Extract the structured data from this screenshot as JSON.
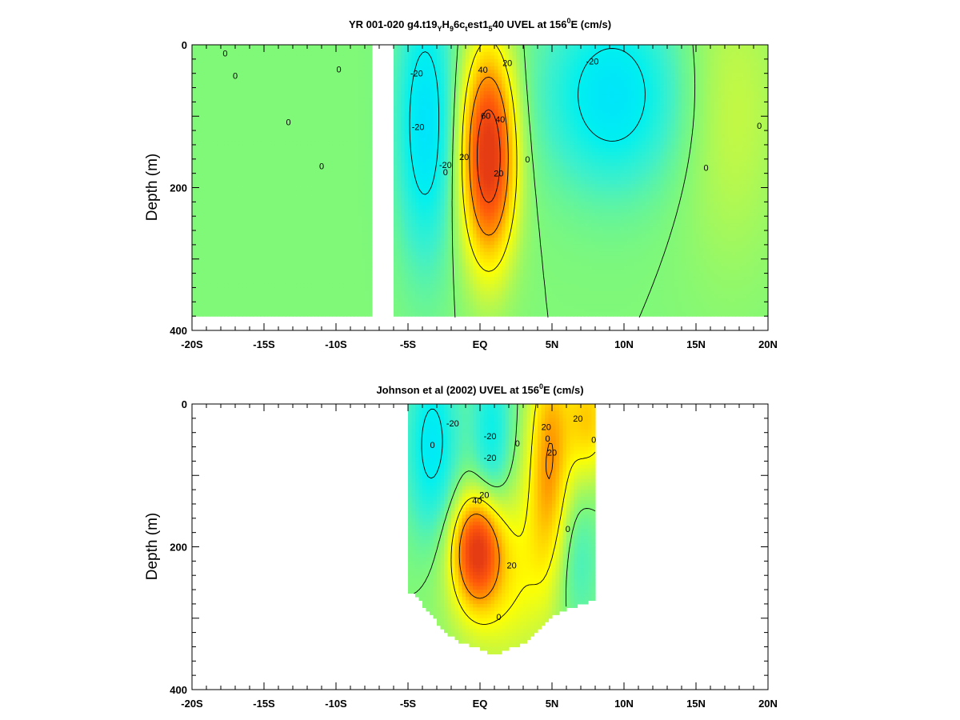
{
  "chart_data": [
    {
      "type": "heatmap",
      "title": {
        "prefix": "YR 001-020 g4.t19",
        "sub1": "Y",
        "mid1": "H",
        "sub2": "9",
        "mid2": "6c",
        "sub3": "t",
        "mid3": "est1",
        "sub4": "5",
        "mid4": "40 UVEL at 156",
        "sup": "0",
        "suffix": "E (cm/s)"
      },
      "ylabel": "Depth (m)",
      "xlim": [
        -20,
        20
      ],
      "ylim": [
        0,
        400
      ],
      "y_inverted": true,
      "x_ticks": [
        {
          "v": -20,
          "label": "-20S"
        },
        {
          "v": -15,
          "label": "-15S"
        },
        {
          "v": -10,
          "label": "-10S"
        },
        {
          "v": -5,
          "label": "-5S"
        },
        {
          "v": 0,
          "label": "EQ"
        },
        {
          "v": 5,
          "label": "5N"
        },
        {
          "v": 10,
          "label": "10N"
        },
        {
          "v": 15,
          "label": "15N"
        },
        {
          "v": 20,
          "label": "20N"
        }
      ],
      "y_ticks": [
        {
          "v": 0,
          "label": "0"
        },
        {
          "v": 200,
          "label": "200"
        },
        {
          "v": 400,
          "label": "400"
        }
      ],
      "data_extent": {
        "x": [
          -20,
          20
        ],
        "y": [
          0,
          382
        ]
      },
      "missing_x_band": [
        -7.5,
        -6.1
      ],
      "features": [
        {
          "name": "equatorial undercurrent core",
          "x": 0.6,
          "y": 155,
          "amplitude": 75,
          "sx": 1.25,
          "sy": 100
        },
        {
          "name": "south westward flow",
          "x": -3.8,
          "y": 110,
          "amplitude": -27,
          "sx": 1.4,
          "sy": 130
        },
        {
          "name": "north westward flow",
          "x": 9.2,
          "y": 70,
          "amplitude": -26,
          "sx": 3.3,
          "sy": 90
        },
        {
          "name": "north eastward flow",
          "x": 17.5,
          "y": 90,
          "amplitude": 10,
          "sx": 2.5,
          "sy": 150
        }
      ],
      "contour_levels": [
        -20,
        0,
        20,
        40,
        60
      ],
      "contour_labels": [
        {
          "x": -17.7,
          "y": 12,
          "text": "0"
        },
        {
          "x": -17.0,
          "y": 43,
          "text": "0"
        },
        {
          "x": -9.8,
          "y": 34,
          "text": "0"
        },
        {
          "x": -13.3,
          "y": 108,
          "text": "0"
        },
        {
          "x": -11.0,
          "y": 170,
          "text": "0"
        },
        {
          "x": -4.4,
          "y": 40,
          "text": "-20"
        },
        {
          "x": -4.3,
          "y": 115,
          "text": "-20"
        },
        {
          "x": -2.4,
          "y": 168,
          "text": "-20"
        },
        {
          "x": 0.2,
          "y": 35,
          "text": "40"
        },
        {
          "x": 1.9,
          "y": 25,
          "text": "20"
        },
        {
          "x": 0.4,
          "y": 99,
          "text": "60"
        },
        {
          "x": 1.4,
          "y": 104,
          "text": "40"
        },
        {
          "x": -1.1,
          "y": 157,
          "text": "20"
        },
        {
          "x": 1.3,
          "y": 180,
          "text": "20"
        },
        {
          "x": 3.3,
          "y": 160,
          "text": "0"
        },
        {
          "x": -2.4,
          "y": 178,
          "text": "0"
        },
        {
          "x": 7.8,
          "y": 23,
          "text": "-20"
        },
        {
          "x": 15.7,
          "y": 172,
          "text": "0"
        },
        {
          "x": 19.4,
          "y": 113,
          "text": "0"
        }
      ]
    },
    {
      "type": "heatmap",
      "title": {
        "prefix": "Johnson et al (2002) UVEL at 156",
        "sup": "0",
        "suffix": "E (cm/s)"
      },
      "ylabel": "Depth (m)",
      "xlim": [
        -20,
        20
      ],
      "ylim": [
        0,
        400
      ],
      "y_inverted": true,
      "x_ticks": [
        {
          "v": -20,
          "label": "-20S"
        },
        {
          "v": -15,
          "label": "-15S"
        },
        {
          "v": -10,
          "label": "-10S"
        },
        {
          "v": -5,
          "label": "-5S"
        },
        {
          "v": 0,
          "label": "EQ"
        },
        {
          "v": 5,
          "label": "5N"
        },
        {
          "v": 10,
          "label": "10N"
        },
        {
          "v": 15,
          "label": "15N"
        },
        {
          "v": 20,
          "label": "20N"
        }
      ],
      "y_ticks": [
        {
          "v": 0,
          "label": "0"
        },
        {
          "v": 200,
          "label": "200"
        },
        {
          "v": 400,
          "label": "400"
        }
      ],
      "data_x_range": [
        -5,
        8
      ],
      "bottom_profile": [
        {
          "x": -5.0,
          "depth": 262
        },
        {
          "x": -4.4,
          "depth": 268
        },
        {
          "x": -3.8,
          "depth": 285
        },
        {
          "x": -3.2,
          "depth": 300
        },
        {
          "x": -2.5,
          "depth": 318
        },
        {
          "x": -1.7,
          "depth": 330
        },
        {
          "x": -0.8,
          "depth": 337
        },
        {
          "x": 0.2,
          "depth": 345
        },
        {
          "x": 1.0,
          "depth": 352
        },
        {
          "x": 1.8,
          "depth": 343
        },
        {
          "x": 2.6,
          "depth": 338
        },
        {
          "x": 3.4,
          "depth": 330
        },
        {
          "x": 4.2,
          "depth": 312
        },
        {
          "x": 5.0,
          "depth": 298
        },
        {
          "x": 5.8,
          "depth": 288
        },
        {
          "x": 6.6,
          "depth": 283
        },
        {
          "x": 7.4,
          "depth": 278
        },
        {
          "x": 8.0,
          "depth": 275
        }
      ],
      "features": [
        {
          "name": "undercurrent core",
          "x": -0.2,
          "y": 205,
          "amplitude": 60,
          "sx": 1.1,
          "sy": 50
        },
        {
          "name": "subsurface eastward band",
          "x": 1.5,
          "y": 235,
          "amplitude": 22,
          "sx": 2.5,
          "sy": 90
        },
        {
          "name": "upper eastward jet",
          "x": 4.8,
          "y": 80,
          "amplitude": 38,
          "sx": 1.0,
          "sy": 110
        },
        {
          "name": "near-surface eastward flow",
          "x": 7.5,
          "y": 20,
          "amplitude": 30,
          "sx": 1.2,
          "sy": 60
        },
        {
          "name": "south westward flow",
          "x": -3.3,
          "y": 60,
          "amplitude": -24,
          "sx": 1.3,
          "sy": 90
        },
        {
          "name": "westward flow near equator",
          "x": 0.8,
          "y": 55,
          "amplitude": -20,
          "sx": 1.0,
          "sy": 90
        },
        {
          "name": "deep westward flow",
          "x": 6.5,
          "y": 220,
          "amplitude": -12,
          "sx": 1.2,
          "sy": 70
        }
      ],
      "contour_levels": [
        -20,
        0,
        20,
        40
      ],
      "contour_labels": [
        {
          "x": -1.9,
          "y": 27,
          "text": "-20"
        },
        {
          "x": 0.7,
          "y": 45,
          "text": "-20"
        },
        {
          "x": -3.3,
          "y": 57,
          "text": "0"
        },
        {
          "x": 0.7,
          "y": 75,
          "text": "-20"
        },
        {
          "x": 4.6,
          "y": 32,
          "text": "20"
        },
        {
          "x": 6.8,
          "y": 20,
          "text": "20"
        },
        {
          "x": 2.6,
          "y": 55,
          "text": "0"
        },
        {
          "x": 4.7,
          "y": 48,
          "text": "0"
        },
        {
          "x": 5.0,
          "y": 68,
          "text": "20"
        },
        {
          "x": 7.9,
          "y": 50,
          "text": "0"
        },
        {
          "x": 0.3,
          "y": 127,
          "text": "20"
        },
        {
          "x": -0.2,
          "y": 135,
          "text": "40"
        },
        {
          "x": 6.1,
          "y": 175,
          "text": "0"
        },
        {
          "x": 2.2,
          "y": 226,
          "text": "20"
        },
        {
          "x": 1.3,
          "y": 298,
          "text": "0"
        }
      ]
    }
  ]
}
